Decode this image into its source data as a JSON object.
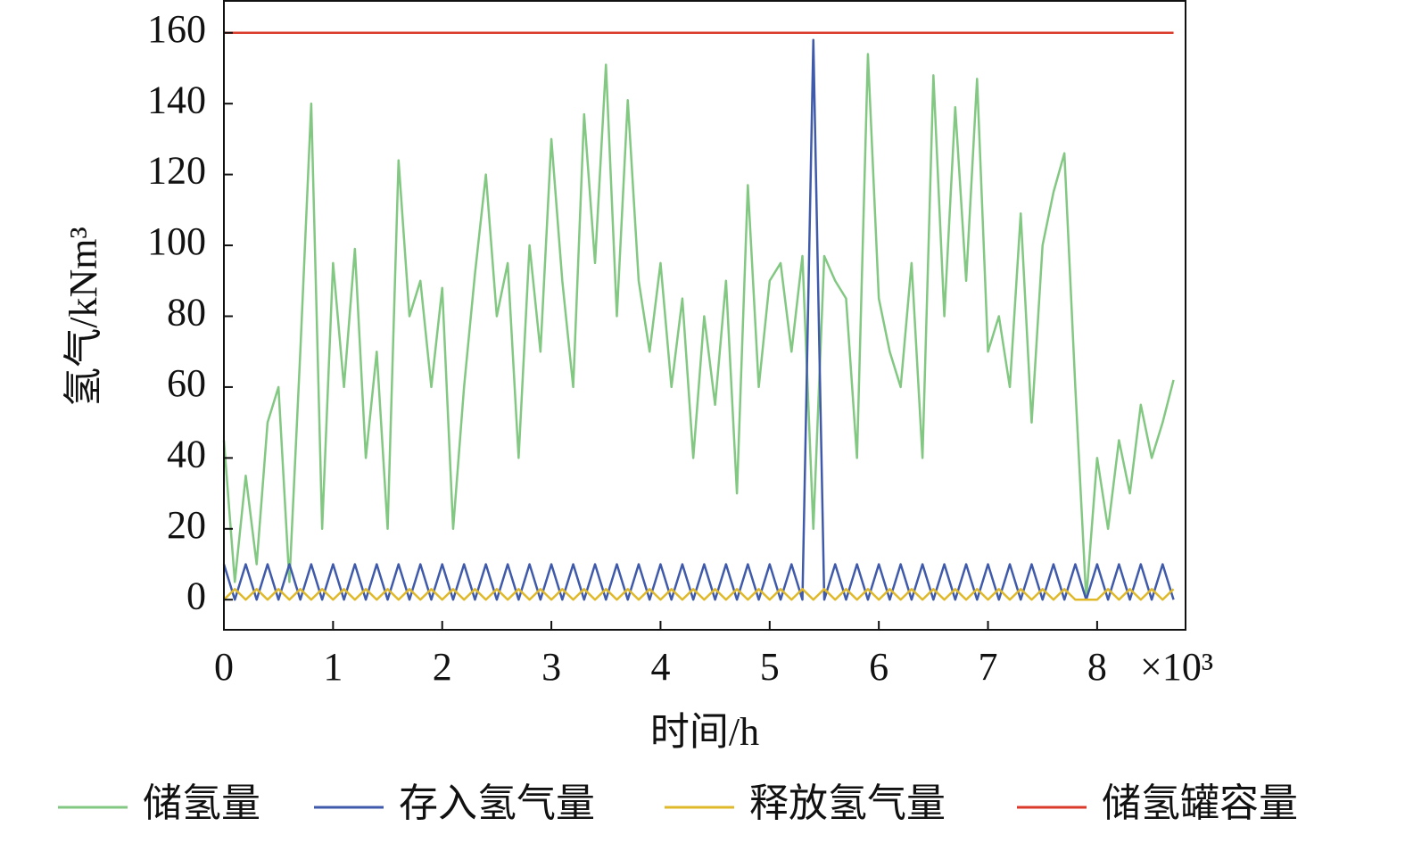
{
  "chart_data": {
    "type": "line",
    "xlabel": "时间/h",
    "ylabel": "氢气/kNm³",
    "x_multiplier": "×10³",
    "x": [
      0.0,
      0.1,
      0.2,
      0.3,
      0.4,
      0.5,
      0.6,
      0.7,
      0.8,
      0.9,
      1.0,
      1.1,
      1.2,
      1.3,
      1.4,
      1.5,
      1.6,
      1.7,
      1.8,
      1.9,
      2.0,
      2.1,
      2.2,
      2.3,
      2.4,
      2.5,
      2.6,
      2.7,
      2.8,
      2.9,
      3.0,
      3.1,
      3.2,
      3.3,
      3.4,
      3.5,
      3.6,
      3.7,
      3.8,
      3.9,
      4.0,
      4.1,
      4.2,
      4.3,
      4.4,
      4.5,
      4.6,
      4.7,
      4.8,
      4.9,
      5.0,
      5.1,
      5.2,
      5.3,
      5.4,
      5.5,
      5.6,
      5.7,
      5.8,
      5.9,
      6.0,
      6.1,
      6.2,
      6.3,
      6.4,
      6.5,
      6.6,
      6.7,
      6.8,
      6.9,
      7.0,
      7.1,
      7.2,
      7.3,
      7.4,
      7.5,
      7.6,
      7.7,
      7.8,
      7.9,
      8.0,
      8.1,
      8.2,
      8.3,
      8.4,
      8.5,
      8.6,
      8.7
    ],
    "series": [
      {
        "name": "储氢量",
        "color": "#82c882",
        "values": [
          45,
          5,
          35,
          10,
          50,
          60,
          5,
          70,
          140,
          20,
          95,
          60,
          99,
          40,
          70,
          20,
          124,
          80,
          90,
          60,
          88,
          20,
          60,
          92,
          120,
          80,
          95,
          40,
          100,
          70,
          130,
          90,
          60,
          137,
          95,
          151,
          80,
          141,
          90,
          70,
          95,
          60,
          85,
          40,
          80,
          55,
          90,
          30,
          117,
          60,
          90,
          95,
          70,
          97,
          20,
          97,
          90,
          85,
          40,
          154,
          85,
          70,
          60,
          95,
          40,
          148,
          80,
          139,
          90,
          147,
          70,
          80,
          60,
          109,
          50,
          100,
          115,
          126,
          60,
          0,
          40,
          20,
          45,
          30,
          55,
          40,
          50,
          62
        ]
      },
      {
        "name": "存入氢气量",
        "color": "#3f5aab",
        "values": [
          10,
          0,
          10,
          0,
          10,
          0,
          10,
          0,
          10,
          0,
          10,
          0,
          10,
          0,
          10,
          0,
          10,
          0,
          10,
          0,
          10,
          0,
          10,
          0,
          10,
          0,
          10,
          0,
          10,
          0,
          10,
          0,
          10,
          0,
          10,
          0,
          10,
          0,
          10,
          0,
          10,
          0,
          10,
          0,
          10,
          0,
          10,
          0,
          10,
          0,
          10,
          0,
          10,
          0,
          158,
          0,
          10,
          0,
          10,
          0,
          10,
          0,
          10,
          0,
          10,
          0,
          10,
          0,
          10,
          0,
          10,
          0,
          10,
          0,
          10,
          0,
          10,
          0,
          10,
          0,
          10,
          0,
          10,
          0,
          10,
          0,
          10,
          0
        ]
      },
      {
        "name": "释放氢气量",
        "color": "#e0b92a",
        "values": [
          0,
          3,
          0,
          3,
          0,
          3,
          0,
          3,
          0,
          3,
          0,
          3,
          0,
          3,
          0,
          3,
          0,
          3,
          0,
          3,
          0,
          3,
          0,
          3,
          0,
          3,
          0,
          3,
          0,
          3,
          0,
          3,
          0,
          3,
          0,
          3,
          0,
          3,
          0,
          3,
          0,
          3,
          0,
          3,
          0,
          3,
          0,
          3,
          0,
          3,
          0,
          3,
          0,
          3,
          0,
          3,
          0,
          3,
          0,
          3,
          0,
          3,
          0,
          3,
          0,
          3,
          0,
          3,
          0,
          3,
          0,
          3,
          0,
          3,
          0,
          3,
          0,
          3,
          0,
          0,
          0,
          3,
          0,
          3,
          0,
          3,
          0,
          3
        ]
      },
      {
        "name": "储氢罐容量",
        "color": "#d93a2a",
        "values": [
          160,
          160,
          160,
          160,
          160,
          160,
          160,
          160,
          160,
          160,
          160,
          160,
          160,
          160,
          160,
          160,
          160,
          160,
          160,
          160,
          160,
          160,
          160,
          160,
          160,
          160,
          160,
          160,
          160,
          160,
          160,
          160,
          160,
          160,
          160,
          160,
          160,
          160,
          160,
          160,
          160,
          160,
          160,
          160,
          160,
          160,
          160,
          160,
          160,
          160,
          160,
          160,
          160,
          160,
          160,
          160,
          160,
          160,
          160,
          160,
          160,
          160,
          160,
          160,
          160,
          160,
          160,
          160,
          160,
          160,
          160,
          160,
          160,
          160,
          160,
          160,
          160,
          160,
          160,
          160,
          160,
          160,
          160,
          160,
          160,
          160,
          160,
          160
        ]
      }
    ],
    "xlim": [
      0,
      8.81
    ],
    "xticks": [
      0,
      1,
      2,
      3,
      4,
      5,
      6,
      7,
      8
    ],
    "ylim": [
      -8.5,
      169
    ],
    "yticks": [
      0,
      20,
      40,
      60,
      80,
      100,
      120,
      140,
      160
    ],
    "legend": "bottom"
  }
}
